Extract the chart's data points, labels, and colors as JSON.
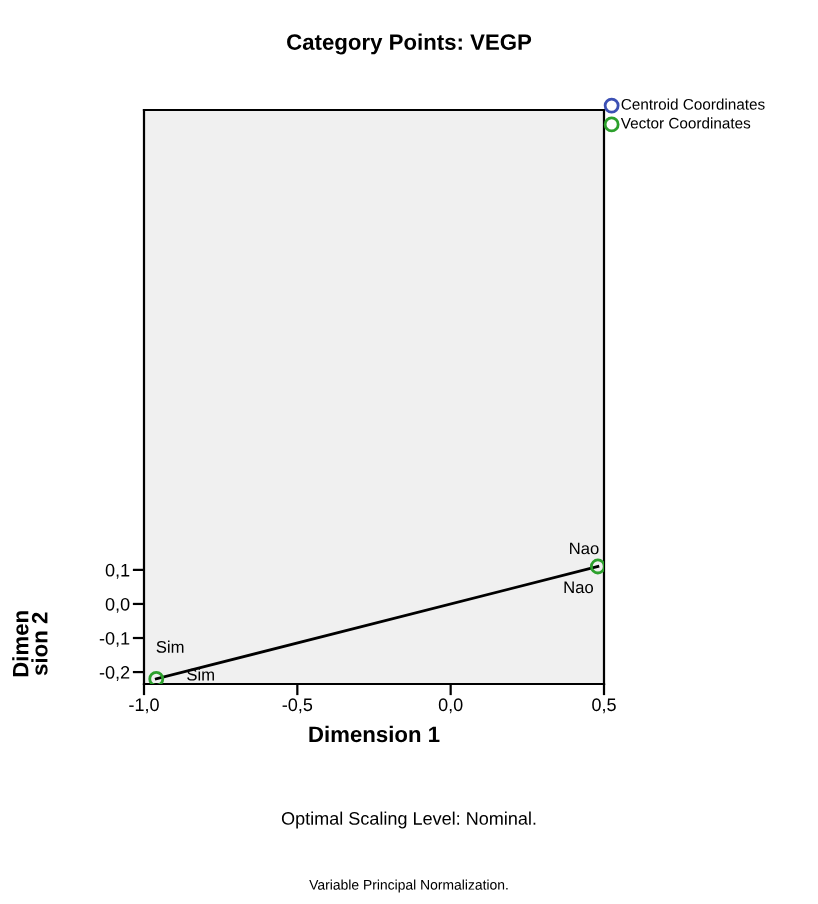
{
  "chart_data": {
    "type": "scatter",
    "title": "Category Points: VEGP",
    "xlabel": "Dimension 1",
    "ylabel": "Dimen\nsion 2",
    "xlim": [
      -1.0,
      0.5
    ],
    "xticks": [
      {
        "value": -1.0,
        "label": "-1,0"
      },
      {
        "value": -0.5,
        "label": "-0,5"
      },
      {
        "value": 0.0,
        "label": "0,0"
      },
      {
        "value": 0.5,
        "label": "0,5"
      }
    ],
    "ylim": [
      -0.235,
      1.45
    ],
    "yticks": [
      {
        "value": -0.2,
        "label": "-0,2"
      },
      {
        "value": -0.1,
        "label": "-0,1"
      },
      {
        "value": 0.0,
        "label": "0,0"
      },
      {
        "value": 0.1,
        "label": "0,1"
      }
    ],
    "series": [
      {
        "name": "Centroid Coordinates",
        "color": "#3c50b4"
      },
      {
        "name": "Vector Coordinates",
        "color": "#2ca02c",
        "x": [
          -0.96,
          0.48
        ],
        "values": [
          -0.22,
          0.11
        ],
        "line_style": "solid"
      }
    ],
    "annotations": [
      "Sim",
      "Nao",
      "Sim",
      "Nao",
      "Optimal Scaling Level: Nominal.",
      "Variable Principal Normalization."
    ],
    "legend": "top right",
    "marker": "circle",
    "grid": false
  }
}
